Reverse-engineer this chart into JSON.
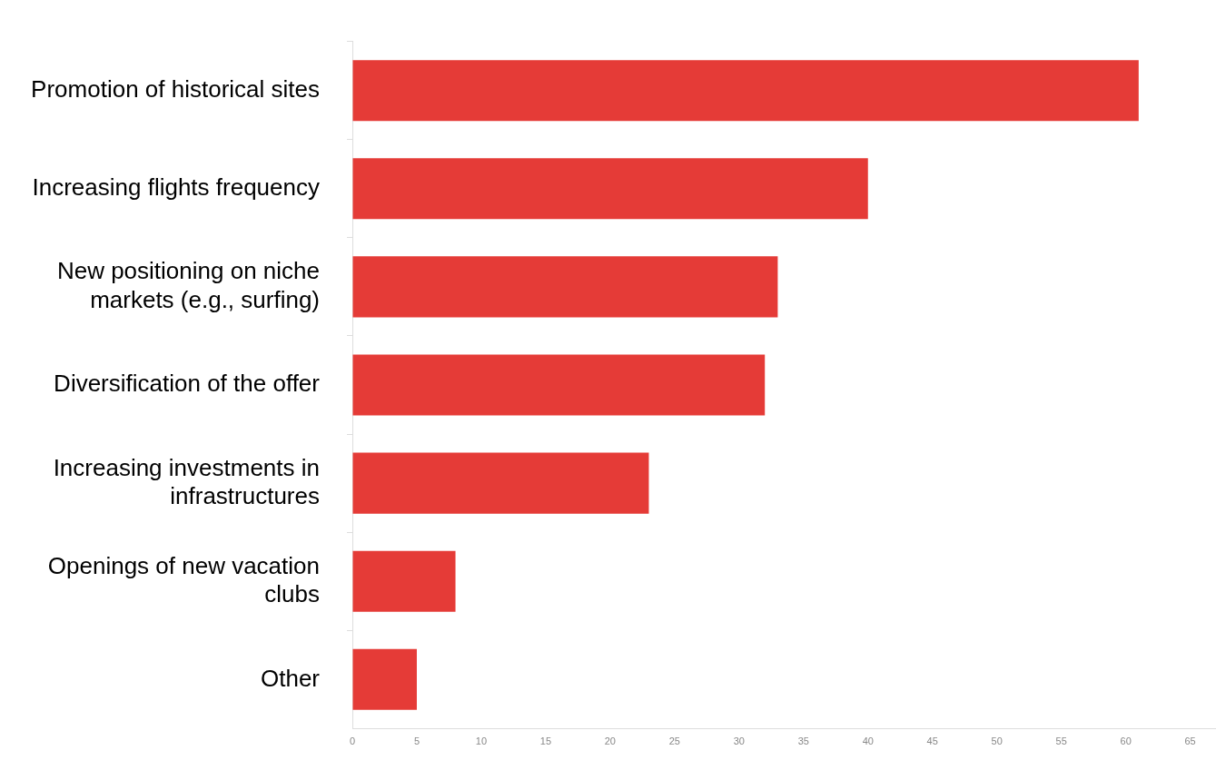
{
  "chart_data": {
    "type": "bar",
    "orientation": "horizontal",
    "categories": [
      "Promotion of historical sites",
      "Increasing flights frequency",
      "New positioning on niche markets (e.g., surfing)",
      "Diversification of the offer",
      "Increasing investments in infrastructures",
      "Openings of new vacation clubs",
      "Other"
    ],
    "values": [
      61,
      40,
      33,
      32,
      23,
      8,
      5
    ],
    "color": "#e53b37",
    "xlim": [
      0,
      67
    ],
    "xticks": [
      0,
      5,
      10,
      15,
      20,
      25,
      30,
      35,
      40,
      45,
      50,
      55,
      60,
      65
    ],
    "grid": false,
    "legend": false
  }
}
